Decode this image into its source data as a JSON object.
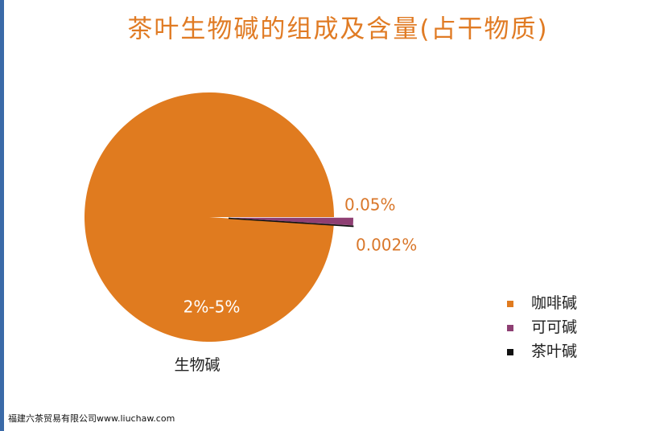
{
  "chart_data": {
    "type": "pie",
    "title": "茶叶生物碱的组成及含量(占干物质)",
    "subtitle": "生物碱",
    "categories": [
      "咖啡碱",
      "可可碱",
      "茶叶碱"
    ],
    "values": [
      5,
      0.05,
      0.002
    ],
    "value_labels": [
      "2%-5%",
      "0.05%",
      "0.002%"
    ],
    "colors": [
      "#e07b1f",
      "#8e3f73",
      "#111111"
    ],
    "legend": "right"
  },
  "footer": "福建六茶贸易有限公司www.liuchaw.com"
}
